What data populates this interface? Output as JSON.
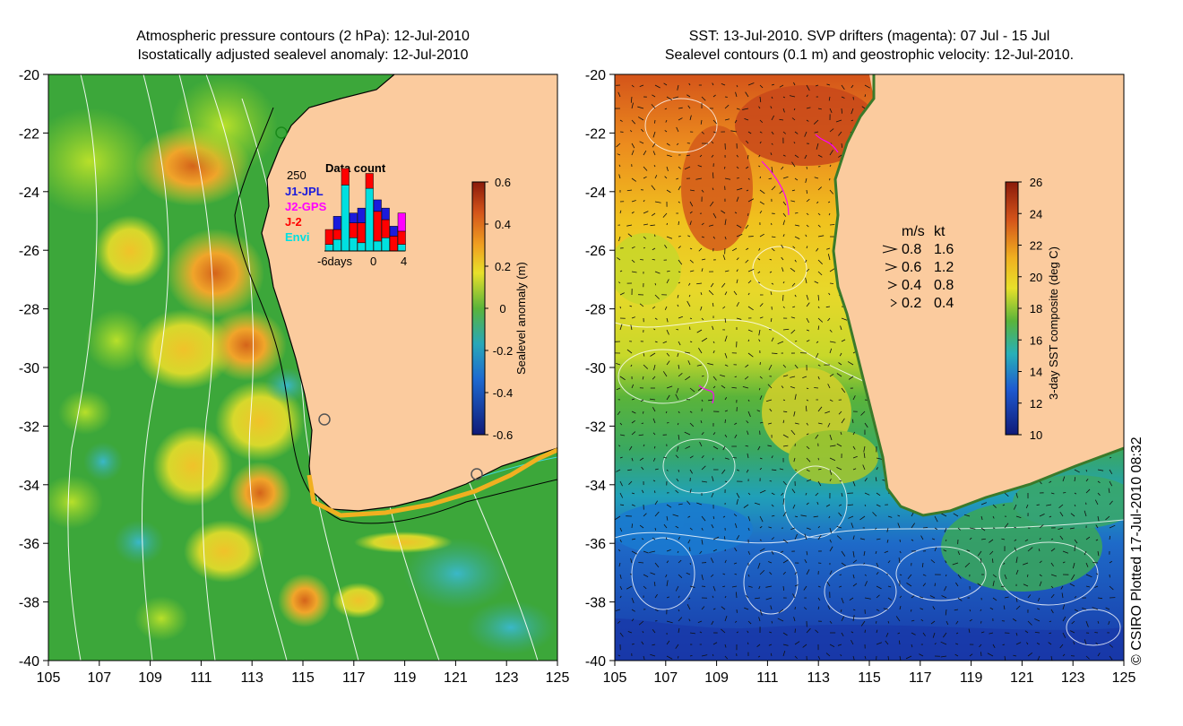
{
  "left_panel": {
    "title_line1": "Atmospheric pressure contours (2 hPa): 12-Jul-2010",
    "title_line2": "Isostatically adjusted sealevel anomaly: 12-Jul-2010",
    "colorbar": {
      "label": "Sealevel anomaly (m)",
      "ticks": [
        "0.6",
        "0.4",
        "0.2",
        "0",
        "-0.2",
        "-0.4",
        "-0.6"
      ],
      "range": [
        -0.6,
        0.6
      ]
    },
    "data_count_inset": {
      "title": "Data count",
      "ymax_label": "250",
      "legend": [
        {
          "name": "J1-JPL",
          "color": "#1a1adc"
        },
        {
          "name": "J2-GPS",
          "color": "#ff00ff"
        },
        {
          "name": "J-2",
          "color": "#ff0000"
        },
        {
          "name": "Envi",
          "color": "#00e0e0"
        }
      ],
      "xaxis_labels": [
        "-6days",
        "0",
        "4"
      ],
      "bars": [
        {
          "day": -6,
          "envi": 20,
          "j2": 45,
          "j1": 0,
          "j2gps": 0
        },
        {
          "day": -5,
          "envi": 35,
          "j2": 30,
          "j1": 40,
          "j2gps": 0
        },
        {
          "day": -4,
          "envi": 200,
          "j2": 50,
          "j1": 0,
          "j2gps": 0
        },
        {
          "day": -3,
          "envi": 40,
          "j2": 45,
          "j1": 30,
          "j2gps": 0
        },
        {
          "day": -2,
          "envi": 25,
          "j2": 60,
          "j1": 45,
          "j2gps": 0
        },
        {
          "day": -1,
          "envi": 190,
          "j2": 45,
          "j1": 0,
          "j2gps": 0
        },
        {
          "day": 0,
          "envi": 30,
          "j2": 90,
          "j1": 35,
          "j2gps": 0
        },
        {
          "day": 1,
          "envi": 40,
          "j2": 55,
          "j1": 35,
          "j2gps": 0
        },
        {
          "day": 2,
          "envi": 0,
          "j2": 45,
          "j1": 30,
          "j2gps": 0
        },
        {
          "day": 3,
          "envi": 20,
          "j2": 40,
          "j1": 0,
          "j2gps": 55
        }
      ]
    }
  },
  "right_panel": {
    "title_line1": "SST: 13-Jul-2010. SVP drifters (magenta): 07 Jul - 15 Jul",
    "title_line2": "Sealevel contours (0.1 m) and geostrophic velocity: 12-Jul-2010.",
    "colorbar": {
      "label": "3-day SST composite (deg C)",
      "ticks": [
        "26",
        "24",
        "22",
        "20",
        "18",
        "16",
        "14",
        "12",
        "10"
      ],
      "range": [
        10,
        26
      ]
    },
    "velocity_legend": {
      "header_ms": "m/s",
      "header_kt": "kt",
      "rows": [
        {
          "ms": "0.8",
          "kt": "1.6"
        },
        {
          "ms": "0.6",
          "kt": "1.2"
        },
        {
          "ms": "0.4",
          "kt": "0.8"
        },
        {
          "ms": "0.2",
          "kt": "0.4"
        }
      ]
    }
  },
  "axes": {
    "lat_labels": [
      "-20",
      "-22",
      "-24",
      "-26",
      "-28",
      "-30",
      "-32",
      "-34",
      "-36",
      "-38",
      "-40"
    ],
    "lon_labels": [
      "105",
      "107",
      "109",
      "111",
      "113",
      "115",
      "117",
      "119",
      "121",
      "123",
      "125"
    ],
    "lat_range": [
      -40,
      -20
    ],
    "lon_range": [
      105,
      125
    ]
  },
  "credit": "© CSIRO Plotted 17-Jul-2010 08:32",
  "colors": {
    "land": "#fbcb9e",
    "ocean_green": "#3ca73a",
    "coastline": "#000000",
    "drifter": "#ff00ff"
  }
}
